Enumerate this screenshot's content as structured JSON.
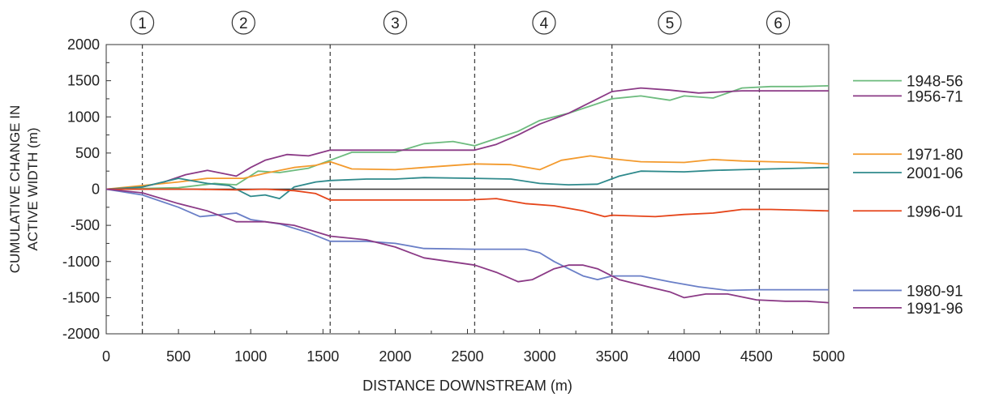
{
  "chart_data": {
    "type": "line",
    "xlabel": "DISTANCE DOWNSTREAM (m)",
    "ylabel_lines": [
      "CUMULATIVE CHANGE IN",
      "ACTIVE WIDTH (m)"
    ],
    "xlim": [
      0,
      5000
    ],
    "ylim": [
      -2000,
      2000
    ],
    "x_ticks": [
      0,
      500,
      1000,
      1500,
      2000,
      2500,
      3000,
      3500,
      4000,
      4500,
      5000
    ],
    "y_ticks": [
      -2000,
      -1500,
      -1000,
      -500,
      0,
      500,
      1000,
      1500,
      2000
    ],
    "x_tick_labels": [
      "0",
      "500",
      "1000",
      "1500",
      "2000",
      "2500",
      "3000",
      "3500",
      "4000",
      "4500",
      "5000"
    ],
    "y_tick_labels": [
      "-2000",
      "-1500",
      "-1000",
      "-500",
      "0",
      "500",
      "1000",
      "1500",
      "2000"
    ],
    "grid": false,
    "legend_position": "right",
    "reaches": [
      {
        "label": "1",
        "x": 250
      },
      {
        "label": "2",
        "x": 1550
      },
      {
        "label": "3",
        "x": 2550
      },
      {
        "label": "4",
        "x": 3500
      },
      {
        "label": "5",
        "x": 4520
      },
      {
        "label": "6",
        "x": null
      }
    ],
    "reach_label_centers": [
      250,
      950,
      2000,
      3030,
      3900,
      4650
    ],
    "series": [
      {
        "name": "1948-56",
        "color": "#6dbb7e",
        "legend_y": 1500,
        "x": [
          0,
          250,
          500,
          750,
          900,
          1050,
          1200,
          1400,
          1550,
          1700,
          2000,
          2200,
          2400,
          2550,
          2700,
          2850,
          3000,
          3200,
          3350,
          3500,
          3700,
          3900,
          4000,
          4200,
          4400,
          4600,
          4800,
          5000
        ],
        "y": [
          0,
          10,
          20,
          80,
          60,
          250,
          230,
          290,
          400,
          510,
          510,
          630,
          660,
          600,
          700,
          800,
          950,
          1050,
          1150,
          1250,
          1290,
          1230,
          1290,
          1260,
          1400,
          1420,
          1420,
          1430
        ]
      },
      {
        "name": "1956-71",
        "color": "#8b3a86",
        "legend_y": 1290,
        "x": [
          0,
          250,
          400,
          550,
          700,
          900,
          1000,
          1100,
          1250,
          1400,
          1550,
          1800,
          2000,
          2200,
          2550,
          2700,
          2850,
          3000,
          3200,
          3400,
          3500,
          3700,
          3900,
          4100,
          4400,
          4600,
          4800,
          5000
        ],
        "y": [
          0,
          30,
          100,
          200,
          260,
          180,
          300,
          400,
          480,
          460,
          540,
          540,
          540,
          540,
          540,
          620,
          750,
          900,
          1050,
          1250,
          1350,
          1400,
          1370,
          1330,
          1360,
          1360,
          1360,
          1360
        ]
      },
      {
        "name": "1971-80",
        "color": "#f39a2d",
        "legend_y": 485,
        "x": [
          0,
          250,
          500,
          700,
          950,
          1100,
          1300,
          1450,
          1550,
          1700,
          2000,
          2200,
          2550,
          2800,
          3000,
          3150,
          3350,
          3500,
          3700,
          4000,
          4200,
          4400,
          4600,
          4800,
          5000
        ],
        "y": [
          0,
          50,
          100,
          150,
          150,
          220,
          300,
          330,
          380,
          280,
          270,
          300,
          350,
          340,
          270,
          400,
          460,
          420,
          380,
          370,
          410,
          390,
          380,
          370,
          350
        ]
      },
      {
        "name": "2001-06",
        "color": "#2f8a8c",
        "legend_y": 230,
        "x": [
          0,
          250,
          500,
          700,
          850,
          1000,
          1100,
          1200,
          1300,
          1450,
          1550,
          1800,
          2000,
          2200,
          2550,
          2800,
          3000,
          3200,
          3400,
          3550,
          3700,
          4000,
          4200,
          4400,
          4600,
          4800,
          5000
        ],
        "y": [
          0,
          30,
          150,
          80,
          50,
          -100,
          -80,
          -130,
          30,
          100,
          120,
          140,
          140,
          160,
          150,
          140,
          80,
          60,
          70,
          180,
          250,
          240,
          260,
          270,
          280,
          290,
          300
        ]
      },
      {
        "name": "1996-01",
        "color": "#e5451a",
        "legend_y": -300,
        "x": [
          0,
          250,
          600,
          900,
          1100,
          1300,
          1450,
          1550,
          2000,
          2500,
          2700,
          2900,
          3100,
          3300,
          3450,
          3500,
          3800,
          4000,
          4200,
          4400,
          4600,
          4800,
          5000
        ],
        "y": [
          0,
          0,
          0,
          -10,
          0,
          -20,
          -60,
          -150,
          -150,
          -150,
          -130,
          -200,
          -230,
          -300,
          -380,
          -360,
          -380,
          -350,
          -330,
          -280,
          -280,
          -290,
          -300
        ]
      },
      {
        "name": "1980-91",
        "color": "#6a7fc7",
        "legend_y": -1400,
        "x": [
          0,
          250,
          500,
          650,
          800,
          900,
          1000,
          1200,
          1400,
          1550,
          1800,
          2000,
          2200,
          2550,
          2700,
          2900,
          3000,
          3100,
          3200,
          3300,
          3400,
          3500,
          3700,
          3900,
          4100,
          4300,
          4500,
          4800,
          5000
        ],
        "y": [
          0,
          -80,
          -250,
          -380,
          -350,
          -330,
          -420,
          -480,
          -600,
          -720,
          -720,
          -750,
          -820,
          -830,
          -830,
          -830,
          -880,
          -1000,
          -1100,
          -1200,
          -1250,
          -1200,
          -1200,
          -1280,
          -1350,
          -1400,
          -1390,
          -1390,
          -1390
        ]
      },
      {
        "name": "1991-96",
        "color": "#8b3a86",
        "legend_y": -1640,
        "x": [
          0,
          250,
          500,
          700,
          900,
          1100,
          1300,
          1550,
          1800,
          2000,
          2200,
          2550,
          2700,
          2850,
          2950,
          3100,
          3200,
          3300,
          3400,
          3550,
          3750,
          3900,
          4000,
          4150,
          4300,
          4500,
          4700,
          4850,
          5000
        ],
        "y": [
          0,
          -50,
          -200,
          -300,
          -450,
          -450,
          -500,
          -650,
          -700,
          -800,
          -950,
          -1050,
          -1150,
          -1280,
          -1250,
          -1100,
          -1050,
          -1050,
          -1100,
          -1250,
          -1350,
          -1420,
          -1500,
          -1450,
          -1450,
          -1530,
          -1550,
          -1550,
          -1570
        ]
      }
    ]
  }
}
